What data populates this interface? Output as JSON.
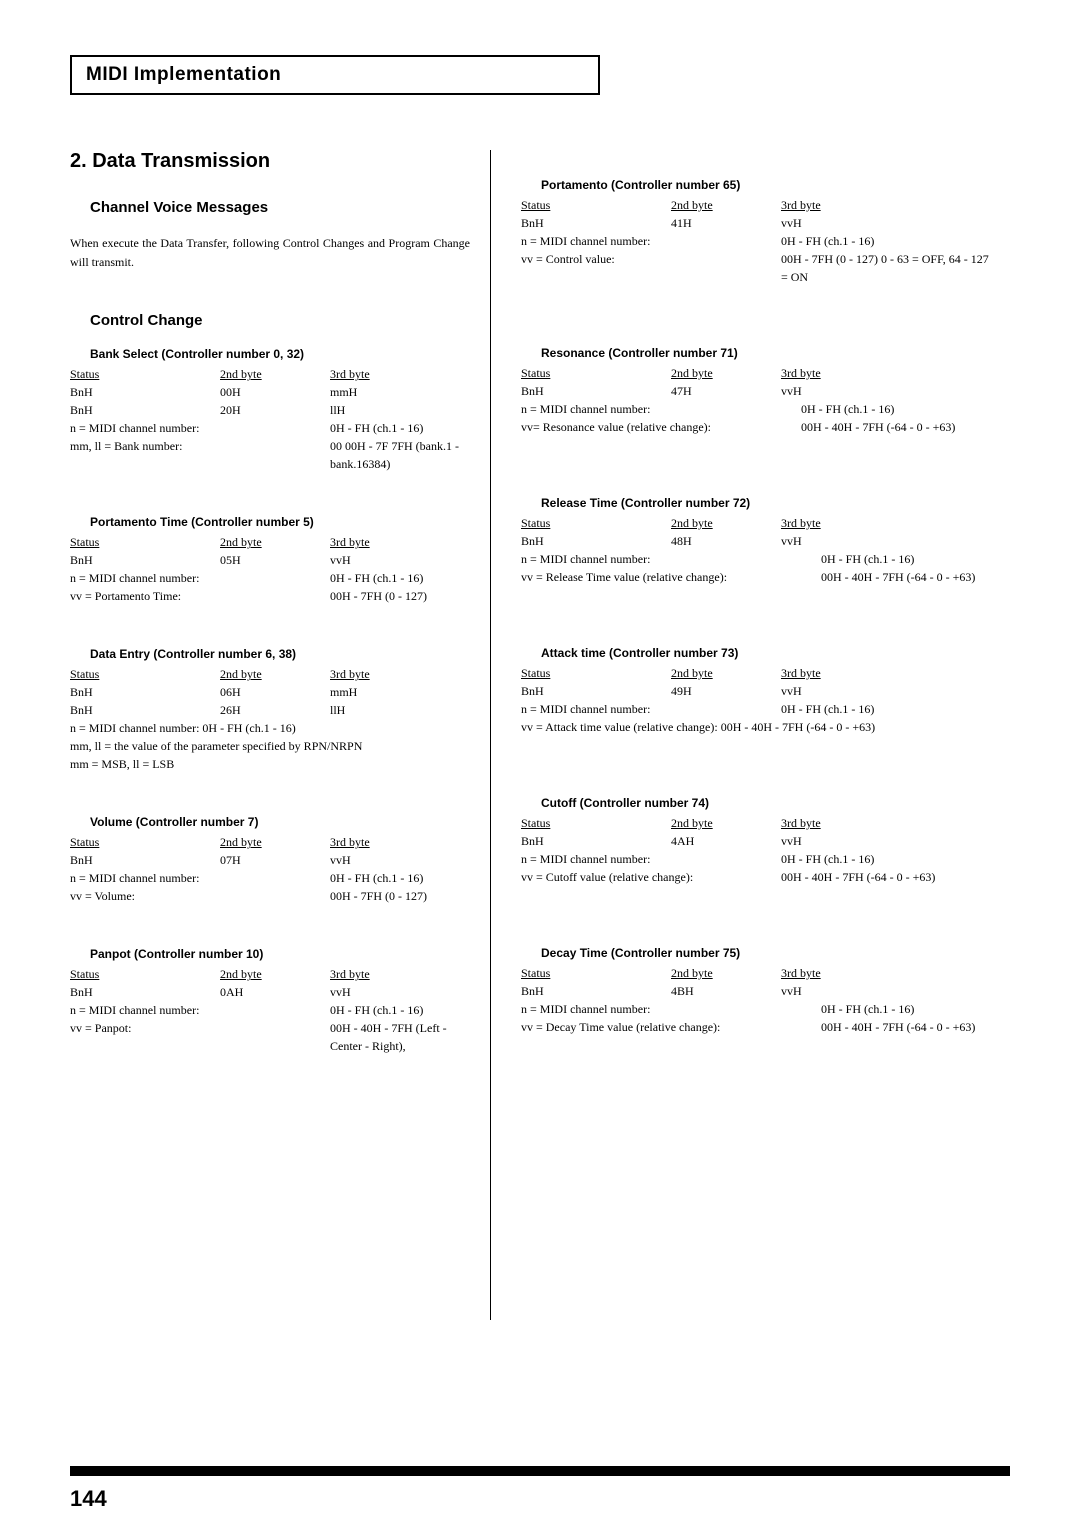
{
  "header": "MIDI Implementation",
  "section_title": "2. Data Transmission",
  "subsection_a": "Channel Voice Messages",
  "intro": "When execute the Data Transfer, following Control Changes and Program Change will transmit.",
  "subsection_b": "Control Change",
  "col_headers": {
    "c1": "Status",
    "c2": "2nd byte",
    "c3": "3rd byte"
  },
  "left_blocks": [
    {
      "title": "Bank Select (Controller number 0, 32)",
      "rows": [
        [
          "BnH",
          "00H",
          "mmH"
        ],
        [
          "BnH",
          "20H",
          "llH"
        ]
      ],
      "notes": [
        {
          "label": "n = MIDI channel number:",
          "val": "0H - FH (ch.1 - 16)"
        },
        {
          "label": "mm, ll = Bank number:",
          "val": "00 00H - 7F 7FH (bank.1 - bank.16384)"
        }
      ]
    },
    {
      "title": "Portamento Time (Controller number 5)",
      "rows": [
        [
          "BnH",
          "05H",
          "vvH"
        ]
      ],
      "notes": [
        {
          "label": "n = MIDI channel number:",
          "val": "0H - FH (ch.1 - 16)"
        },
        {
          "label": "vv = Portamento Time:",
          "val": "00H - 7FH (0 - 127)"
        }
      ]
    },
    {
      "title": "Data Entry (Controller number 6, 38)",
      "rows": [
        [
          "BnH",
          "06H",
          "mmH"
        ],
        [
          "BnH",
          "26H",
          "llH"
        ]
      ],
      "freelines": [
        "n = MIDI channel number: 0H - FH (ch.1 - 16)",
        "mm, ll = the value of the parameter specified by RPN/NRPN",
        "mm = MSB, ll = LSB"
      ]
    },
    {
      "title": "Volume (Controller number 7)",
      "rows": [
        [
          "BnH",
          "07H",
          "vvH"
        ]
      ],
      "notes": [
        {
          "label": "n = MIDI channel number:",
          "val": "0H - FH (ch.1 - 16)"
        },
        {
          "label": "vv = Volume:",
          "val": "00H - 7FH (0 - 127)"
        }
      ]
    },
    {
      "title": "Panpot (Controller number 10)",
      "rows": [
        [
          "BnH",
          "0AH",
          "vvH"
        ]
      ],
      "notes": [
        {
          "label": "n = MIDI channel number:",
          "val": "0H - FH (ch.1 - 16)"
        },
        {
          "label": "vv = Panpot:",
          "val": "00H - 40H - 7FH (Left - Center - Right),"
        }
      ]
    }
  ],
  "right_blocks": [
    {
      "title": "Portamento (Controller number 65)",
      "rows": [
        [
          "BnH",
          "41H",
          "vvH"
        ]
      ],
      "notes": [
        {
          "label": "n = MIDI channel number:",
          "val": "0H - FH (ch.1 - 16)"
        },
        {
          "label": "vv = Control value:",
          "val": "00H - 7FH (0 - 127)  0 - 63 = OFF, 64 - 127 = ON"
        }
      ],
      "label_w": "c1s"
    },
    {
      "title": "Resonance (Controller number 71)",
      "rows": [
        [
          "BnH",
          "47H",
          "vvH"
        ]
      ],
      "notes": [
        {
          "label": "n = MIDI channel number:",
          "val": "0H - FH (ch.1 - 16)"
        },
        {
          "label": "vv= Resonance value (relative change):",
          "val": "00H - 40H - 7FH (-64 - 0 - +63)"
        }
      ],
      "label_w": "c1w"
    },
    {
      "title": "Release Time (Controller number 72)",
      "rows": [
        [
          "BnH",
          "48H",
          "vvH"
        ]
      ],
      "notes": [
        {
          "label": "n = MIDI channel number:",
          "val": "0H - FH (ch.1 - 16)"
        },
        {
          "label": "vv = Release Time value (relative change):",
          "val": "00H - 40H - 7FH (-64 - 0 - +63)"
        }
      ],
      "label_w": "c1m"
    },
    {
      "title": "Attack time (Controller number 73)",
      "rows": [
        [
          "BnH",
          "49H",
          "vvH"
        ]
      ],
      "notes": [
        {
          "label": "n = MIDI channel number:",
          "val": "0H - FH (ch.1 - 16)"
        }
      ],
      "freelines": [
        "vv = Attack time value (relative change):   00H - 40H - 7FH (-64 - 0 - +63)"
      ],
      "label_w": "c1s"
    },
    {
      "title": "Cutoff (Controller number 74)",
      "rows": [
        [
          "BnH",
          "4AH",
          "vvH"
        ]
      ],
      "notes": [
        {
          "label": "n = MIDI channel number:",
          "val": "0H - FH (ch.1 - 16)"
        },
        {
          "label": "vv = Cutoff value (relative change):",
          "val": "00H - 40H - 7FH (-64 - 0 - +63)"
        }
      ],
      "label_w": "c1s"
    },
    {
      "title": "Decay Time (Controller number 75)",
      "rows": [
        [
          "BnH",
          "4BH",
          "vvH"
        ]
      ],
      "notes": [
        {
          "label": "n = MIDI channel number:",
          "val": "0H - FH (ch.1 - 16)"
        },
        {
          "label": "vv = Decay Time value (relative change):",
          "val": "00H - 40H - 7FH (-64 - 0 - +63)"
        }
      ],
      "label_w": "c1m"
    }
  ],
  "page_number": "144"
}
